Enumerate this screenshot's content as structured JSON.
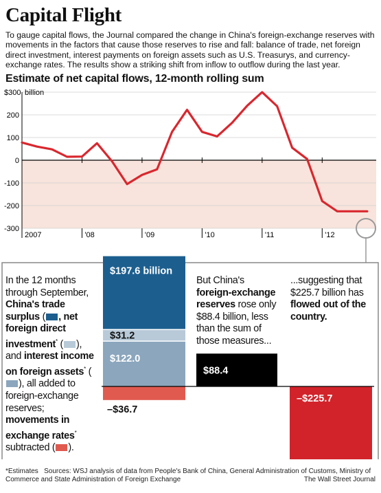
{
  "title": "Capital Flight",
  "intro": "To gauge capital flows, the Journal compared the change in China's foreign-exchange reserves with movements in the factors that cause those reserves to rise and fall: balance of trade, net foreign direct investment, interest payments on foreign assets such as U.S. Treasurys, and currency-exchange rates. The results show a striking shift from inflow to outflow during the last year.",
  "colors": {
    "line": "#d9272e",
    "negative_band": "#f8e4dc",
    "trade_surplus": "#1c5f8f",
    "fdi": "#b8cad8",
    "interest_income": "#8ba6bd",
    "exchange_rates": "#e05a50",
    "fx_reserves": "#000000",
    "outflow": "#d2232a",
    "panel_border": "#888888"
  },
  "chart_data": [
    {
      "type": "line",
      "title": "Estimate of net capital flows, 12-month rolling sum",
      "y_unit": "billion",
      "yticks": [
        "$300",
        "200",
        "100",
        "0",
        "-100",
        "-200",
        "-300"
      ],
      "ylim": [
        -300,
        300
      ],
      "x_ticklabels": [
        "2007",
        "'08",
        "'09",
        "'10",
        "'11",
        "'12"
      ],
      "x_tick_positions": [
        2007,
        2008,
        2009,
        2010,
        2011,
        2012
      ],
      "xlim": [
        2007,
        2012.9
      ],
      "negative_shading": true,
      "series": [
        {
          "x": [
            2007,
            2007.25,
            2007.5,
            2007.75,
            2008,
            2008.25,
            2008.5,
            2008.75,
            2009,
            2009.25,
            2009.5,
            2009.75,
            2010,
            2010.25,
            2010.5,
            2010.75,
            2011,
            2011.25,
            2011.5,
            2011.75,
            2012,
            2012.25,
            2012.5,
            2012.75
          ],
          "y": [
            78,
            60,
            48,
            15,
            16,
            75,
            -5,
            -105,
            -65,
            -40,
            125,
            222,
            125,
            105,
            165,
            240,
            300,
            238,
            55,
            5,
            -180,
            -225,
            -225,
            -225
          ]
        }
      ]
    },
    {
      "type": "bar",
      "bars": [
        {
          "label": "$197.6 billion",
          "value": 197.6
        },
        {
          "label": "$31.2",
          "value": 31.2
        },
        {
          "label": "$122.0",
          "value": 122.0
        },
        {
          "label": "–$36.7",
          "value": -36.7
        },
        {
          "label": "$88.4",
          "value": 88.4
        },
        {
          "label": "–$225.7",
          "value": -225.7
        }
      ]
    }
  ],
  "panel": {
    "col1": {
      "t1": "In the 12 months through September,",
      "t2": "China's trade surplus",
      "t3": ", net foreign direct investment",
      "star": "*",
      "t4": ",",
      "t5": "and",
      "t6": "interest income on foreign assets",
      "t7": ", all added to foreign-exchange reserves;",
      "t8": "movements in exchange rates",
      "t9": "subtracted (",
      "t10": ")."
    },
    "col2": {
      "t1": "But China's",
      "t2": "foreign-exchange reserves",
      "t3": "rose only $88.4 billion, less than the sum of those measures..."
    },
    "col3": {
      "t1": "...suggesting that $225.7 billion has",
      "t2": "flowed out of the country."
    }
  },
  "footer": {
    "note": "*Estimates",
    "sources": "Sources: WSJ analysis of data from People's Bank of China, General Administration of Customs, Ministry of Commerce and State Administration of Foreign Exchange",
    "credit": "The Wall Street Journal"
  }
}
